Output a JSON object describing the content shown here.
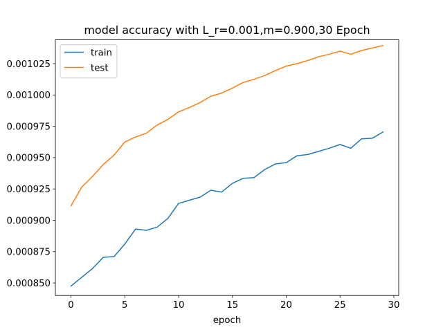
{
  "chart_data": {
    "type": "line",
    "title": "model accuracy with L_r=0.001,m=0.900,30 Epoch",
    "xlabel": "epoch",
    "ylabel": "",
    "xlim": [
      -1.45,
      30.45
    ],
    "ylim": [
      0.00084,
      0.001044
    ],
    "xticks": [
      0,
      5,
      10,
      15,
      20,
      25,
      30
    ],
    "xtick_labels": [
      "0",
      "5",
      "10",
      "15",
      "20",
      "25",
      "30"
    ],
    "yticks": [
      0.00085,
      0.000875,
      0.0009,
      0.000925,
      0.00095,
      0.000975,
      0.001,
      0.001025
    ],
    "ytick_labels": [
      "0.000850",
      "0.000875",
      "0.000900",
      "0.000925",
      "0.000950",
      "0.000975",
      "0.001000",
      "0.001025"
    ],
    "grid": false,
    "legend_position": "upper-left",
    "x": [
      0,
      1,
      2,
      3,
      4,
      5,
      6,
      7,
      8,
      9,
      10,
      11,
      12,
      13,
      14,
      15,
      16,
      17,
      18,
      19,
      20,
      21,
      22,
      23,
      24,
      25,
      26,
      27,
      28,
      29
    ],
    "series": [
      {
        "name": "train",
        "color": "#1f77b4",
        "values": [
          0.0008475,
          0.0008545,
          0.0008615,
          0.0008705,
          0.000871,
          0.000881,
          0.000893,
          0.000892,
          0.0008945,
          0.0009015,
          0.0009135,
          0.000916,
          0.0009185,
          0.000924,
          0.0009225,
          0.0009295,
          0.0009335,
          0.000934,
          0.0009405,
          0.000945,
          0.000946,
          0.0009515,
          0.0009525,
          0.000955,
          0.0009575,
          0.0009605,
          0.0009575,
          0.000965,
          0.0009655,
          0.0009705
        ]
      },
      {
        "name": "test",
        "color": "#ff7f0e",
        "values": [
          0.0009115,
          0.0009265,
          0.000935,
          0.0009445,
          0.000952,
          0.0009625,
          0.0009665,
          0.0009695,
          0.000976,
          0.0009805,
          0.0009865,
          0.00099,
          0.000994,
          0.000999,
          0.0010015,
          0.0010055,
          0.00101,
          0.0010125,
          0.0010155,
          0.0010195,
          0.001023,
          0.001025,
          0.0010275,
          0.0010305,
          0.0010325,
          0.001035,
          0.0010325,
          0.0010355,
          0.0010375,
          0.0010395
        ]
      }
    ]
  }
}
